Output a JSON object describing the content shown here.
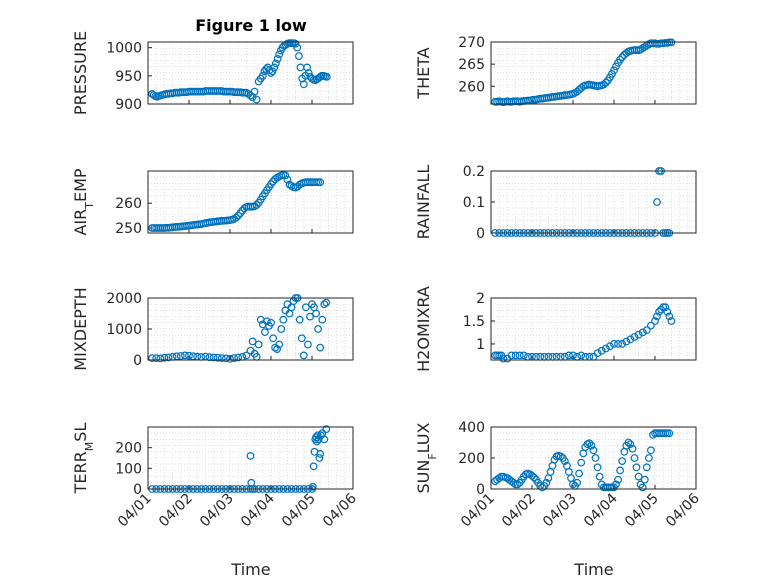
{
  "figure": {
    "title": "Figure 1 low",
    "xlabel": "Time",
    "x_ticks": [
      "04/01",
      "04/02",
      "04/03",
      "04/04",
      "04/05",
      "04/06"
    ],
    "marker_color": "#0072BD"
  },
  "chart_data": [
    {
      "type": "scatter",
      "ylabel": "PRESSURE",
      "ylabel_sub": "",
      "ylabel_tail": "",
      "xlim": [
        0,
        5
      ],
      "ylim": [
        900,
        1010
      ],
      "yticks": [
        900,
        950,
        1000
      ],
      "grid": true,
      "x": [
        0.1,
        0.14,
        0.18,
        0.22,
        0.26,
        0.3,
        0.35,
        0.4,
        0.45,
        0.5,
        0.55,
        0.6,
        0.65,
        0.7,
        0.75,
        0.8,
        0.85,
        0.9,
        0.95,
        1.0,
        1.05,
        1.1,
        1.15,
        1.2,
        1.25,
        1.3,
        1.35,
        1.4,
        1.45,
        1.5,
        1.55,
        1.6,
        1.65,
        1.7,
        1.75,
        1.8,
        1.85,
        1.9,
        1.95,
        2.0,
        2.05,
        2.1,
        2.15,
        2.2,
        2.25,
        2.3,
        2.35,
        2.4,
        2.45,
        2.5,
        2.55,
        2.6,
        2.65,
        2.7,
        2.75,
        2.8,
        2.84,
        2.88,
        2.92,
        2.96,
        3.0,
        3.04,
        3.08,
        3.12,
        3.16,
        3.2,
        3.24,
        3.28,
        3.32,
        3.36,
        3.4,
        3.44,
        3.48,
        3.52,
        3.56,
        3.6,
        3.64,
        3.68,
        3.72,
        3.76,
        3.8,
        3.84,
        3.88,
        3.92,
        3.96,
        4.0,
        4.04,
        4.08,
        4.12,
        4.16,
        4.2,
        4.24,
        4.28,
        4.32,
        4.36
      ],
      "y": [
        918,
        916,
        914,
        913,
        914,
        915,
        916,
        917,
        918,
        918,
        919,
        919,
        920,
        920,
        920,
        921,
        921,
        921,
        921,
        922,
        922,
        922,
        922,
        922,
        922,
        922,
        922,
        923,
        923,
        923,
        923,
        923,
        923,
        923,
        923,
        923,
        922,
        922,
        922,
        922,
        922,
        921,
        921,
        921,
        921,
        920,
        920,
        920,
        918,
        915,
        912,
        922,
        908,
        940,
        945,
        950,
        958,
        962,
        965,
        960,
        955,
        958,
        965,
        972,
        980,
        988,
        995,
        1000,
        1003,
        1005,
        1007,
        1008,
        1008,
        1008,
        1008,
        1007,
        1000,
        985,
        965,
        945,
        935,
        950,
        965,
        955,
        948,
        945,
        943,
        942,
        944,
        946,
        948,
        950,
        950,
        949,
        948
      ]
    },
    {
      "type": "scatter",
      "ylabel": "THETA",
      "ylabel_sub": "",
      "ylabel_tail": "",
      "xlim": [
        0,
        5
      ],
      "ylim": [
        256,
        270
      ],
      "yticks": [
        260,
        265,
        270
      ],
      "grid": true,
      "x": [
        0.1,
        0.15,
        0.2,
        0.25,
        0.3,
        0.35,
        0.4,
        0.45,
        0.5,
        0.55,
        0.6,
        0.65,
        0.7,
        0.75,
        0.8,
        0.85,
        0.9,
        0.95,
        1.0,
        1.05,
        1.1,
        1.15,
        1.2,
        1.25,
        1.3,
        1.35,
        1.4,
        1.45,
        1.5,
        1.55,
        1.6,
        1.65,
        1.7,
        1.75,
        1.8,
        1.85,
        1.9,
        1.95,
        2.0,
        2.05,
        2.1,
        2.15,
        2.2,
        2.25,
        2.3,
        2.35,
        2.4,
        2.45,
        2.5,
        2.55,
        2.6,
        2.65,
        2.7,
        2.75,
        2.8,
        2.85,
        2.9,
        2.95,
        3.0,
        3.05,
        3.1,
        3.15,
        3.2,
        3.25,
        3.3,
        3.35,
        3.4,
        3.45,
        3.5,
        3.55,
        3.6,
        3.65,
        3.7,
        3.75,
        3.8,
        3.85,
        3.9,
        3.95,
        4.0,
        4.05,
        4.1,
        4.15,
        4.2,
        4.25,
        4.3,
        4.35,
        4.4
      ],
      "y": [
        256.5,
        256.5,
        256.6,
        256.5,
        256.4,
        256.5,
        256.6,
        256.5,
        256.5,
        256.6,
        256.6,
        256.6,
        256.5,
        256.6,
        256.7,
        256.7,
        256.8,
        256.8,
        256.9,
        257.0,
        257.0,
        257.1,
        257.2,
        257.2,
        257.3,
        257.4,
        257.4,
        257.5,
        257.6,
        257.6,
        257.7,
        257.8,
        257.8,
        257.9,
        258.0,
        258.0,
        258.1,
        258.2,
        258.3,
        258.5,
        258.8,
        259.2,
        259.6,
        260.0,
        260.2,
        260.3,
        260.4,
        260.3,
        260.2,
        260.1,
        260.0,
        260.1,
        260.2,
        260.4,
        260.8,
        261.3,
        262.0,
        262.8,
        263.6,
        264.5,
        265.3,
        266.0,
        266.6,
        267.1,
        267.5,
        267.8,
        268.0,
        268.1,
        268.2,
        268.2,
        268.1,
        268.3,
        268.6,
        268.9,
        269.2,
        269.5,
        269.7,
        269.7,
        269.7,
        269.6,
        269.6,
        269.7,
        269.7,
        269.8,
        269.8,
        269.9,
        269.9
      ]
    },
    {
      "type": "scatter",
      "ylabel": "AIR",
      "ylabel_sub": "T",
      "ylabel_tail": "EMP",
      "xlim": [
        0,
        5
      ],
      "ylim": [
        248,
        273
      ],
      "yticks": [
        250,
        260
      ],
      "grid": true,
      "x": [
        0.1,
        0.15,
        0.2,
        0.25,
        0.3,
        0.35,
        0.4,
        0.45,
        0.5,
        0.55,
        0.6,
        0.65,
        0.7,
        0.75,
        0.8,
        0.85,
        0.9,
        0.95,
        1.0,
        1.05,
        1.1,
        1.15,
        1.2,
        1.25,
        1.3,
        1.35,
        1.4,
        1.45,
        1.5,
        1.55,
        1.6,
        1.65,
        1.7,
        1.75,
        1.8,
        1.85,
        1.9,
        1.95,
        2.0,
        2.05,
        2.1,
        2.15,
        2.2,
        2.25,
        2.3,
        2.35,
        2.4,
        2.45,
        2.5,
        2.55,
        2.6,
        2.65,
        2.7,
        2.75,
        2.8,
        2.85,
        2.9,
        2.95,
        3.0,
        3.05,
        3.1,
        3.15,
        3.2,
        3.25,
        3.3,
        3.35,
        3.4,
        3.45,
        3.5,
        3.55,
        3.6,
        3.65,
        3.7,
        3.75,
        3.8,
        3.85,
        3.9,
        3.95,
        4.0,
        4.05,
        4.1,
        4.15,
        4.2
      ],
      "y": [
        250.0,
        250.0,
        250.0,
        250.0,
        250.0,
        250.0,
        250.0,
        250.1,
        250.1,
        250.2,
        250.3,
        250.4,
        250.5,
        250.5,
        250.6,
        250.7,
        250.8,
        250.9,
        251.0,
        251.1,
        251.2,
        251.3,
        251.4,
        251.5,
        251.6,
        251.8,
        252.0,
        252.1,
        252.3,
        252.4,
        252.5,
        252.6,
        252.7,
        252.8,
        252.9,
        252.9,
        253.0,
        253.1,
        253.2,
        253.4,
        253.7,
        254.2,
        255.0,
        256.0,
        257.0,
        258.0,
        258.5,
        258.7,
        258.6,
        258.6,
        258.8,
        259.3,
        260.2,
        261.5,
        262.8,
        264.0,
        265.3,
        266.5,
        267.7,
        268.8,
        269.7,
        270.3,
        270.8,
        271.2,
        271.5,
        271.2,
        269.5,
        267.5,
        267.0,
        266.5,
        266.3,
        266.7,
        267.5,
        268.0,
        268.3,
        268.5,
        268.5,
        268.5,
        268.5,
        268.5,
        268.5,
        268.5,
        268.5
      ]
    },
    {
      "type": "scatter",
      "ylabel": "RAINFALL",
      "ylabel_sub": "",
      "ylabel_tail": "",
      "xlim": [
        0,
        5
      ],
      "ylim": [
        0,
        0.2
      ],
      "yticks": [
        0,
        0.1,
        0.2
      ],
      "grid": true,
      "x": [
        0.1,
        0.2,
        0.3,
        0.4,
        0.5,
        0.6,
        0.7,
        0.8,
        0.9,
        1.0,
        1.1,
        1.2,
        1.3,
        1.4,
        1.5,
        1.6,
        1.7,
        1.8,
        1.9,
        2.0,
        2.1,
        2.2,
        2.3,
        2.4,
        2.5,
        2.6,
        2.7,
        2.8,
        2.9,
        3.0,
        3.1,
        3.2,
        3.3,
        3.4,
        3.5,
        3.6,
        3.7,
        3.8,
        3.9,
        4.0,
        4.05,
        4.1,
        4.15,
        4.2,
        4.25,
        4.3,
        4.35
      ],
      "y": [
        0,
        0,
        0,
        0,
        0,
        0,
        0,
        0,
        0,
        0,
        0,
        0,
        0,
        0,
        0,
        0,
        0,
        0,
        0,
        0,
        0,
        0,
        0,
        0,
        0,
        0,
        0,
        0,
        0,
        0,
        0,
        0,
        0,
        0,
        0,
        0,
        0,
        0,
        0,
        0,
        0.1,
        0.2,
        0.2,
        0,
        0,
        0,
        0
      ]
    },
    {
      "type": "scatter",
      "ylabel": "MIXDEPTH",
      "ylabel_sub": "",
      "ylabel_tail": "",
      "xlim": [
        0,
        5
      ],
      "ylim": [
        0,
        2000
      ],
      "yticks": [
        0,
        1000,
        2000
      ],
      "grid": true,
      "x": [
        0.1,
        0.2,
        0.3,
        0.4,
        0.5,
        0.6,
        0.7,
        0.8,
        0.9,
        1.0,
        1.1,
        1.2,
        1.3,
        1.4,
        1.5,
        1.6,
        1.7,
        1.8,
        1.9,
        2.0,
        2.1,
        2.2,
        2.3,
        2.4,
        2.5,
        2.55,
        2.6,
        2.65,
        2.7,
        2.75,
        2.8,
        2.85,
        2.9,
        2.95,
        3.0,
        3.05,
        3.1,
        3.15,
        3.2,
        3.25,
        3.3,
        3.35,
        3.4,
        3.45,
        3.5,
        3.55,
        3.6,
        3.65,
        3.7,
        3.75,
        3.8,
        3.85,
        3.9,
        3.95,
        4.0,
        4.05,
        4.1,
        4.15,
        4.2,
        4.25,
        4.3,
        4.35
      ],
      "y": [
        60,
        60,
        50,
        70,
        80,
        100,
        120,
        130,
        150,
        140,
        120,
        110,
        100,
        110,
        90,
        80,
        70,
        60,
        50,
        40,
        60,
        80,
        100,
        150,
        300,
        600,
        200,
        100,
        500,
        1300,
        1150,
        900,
        1250,
        1100,
        1200,
        700,
        400,
        350,
        500,
        1000,
        1300,
        1600,
        1800,
        1500,
        1700,
        1900,
        2000,
        2000,
        1300,
        700,
        150,
        1700,
        500,
        1400,
        1800,
        1700,
        1500,
        1000,
        400,
        1300,
        1800,
        1850
      ]
    },
    {
      "type": "scatter",
      "ylabel": "H2OMIXRA",
      "ylabel_sub": "",
      "ylabel_tail": "",
      "xlim": [
        0,
        5
      ],
      "ylim": [
        0.65,
        2
      ],
      "yticks": [
        1,
        1.5,
        2
      ],
      "grid": true,
      "x": [
        0.1,
        0.15,
        0.2,
        0.25,
        0.3,
        0.4,
        0.5,
        0.6,
        0.7,
        0.8,
        0.9,
        1.0,
        1.1,
        1.2,
        1.3,
        1.4,
        1.5,
        1.6,
        1.7,
        1.8,
        1.9,
        2.0,
        2.1,
        2.2,
        2.3,
        2.4,
        2.5,
        2.6,
        2.7,
        2.8,
        2.9,
        3.0,
        3.1,
        3.2,
        3.3,
        3.4,
        3.5,
        3.6,
        3.7,
        3.8,
        3.9,
        4.0,
        4.05,
        4.1,
        4.15,
        4.2,
        4.25,
        4.3,
        4.35,
        4.4
      ],
      "y": [
        0.75,
        0.75,
        0.75,
        0.75,
        0.68,
        0.68,
        0.75,
        0.75,
        0.75,
        0.75,
        0.72,
        0.72,
        0.72,
        0.72,
        0.72,
        0.72,
        0.72,
        0.72,
        0.72,
        0.72,
        0.75,
        0.75,
        0.72,
        0.75,
        0.72,
        0.72,
        0.72,
        0.8,
        0.85,
        0.9,
        0.95,
        1.0,
        1.0,
        1.0,
        1.05,
        1.1,
        1.15,
        1.2,
        1.25,
        1.3,
        1.4,
        1.5,
        1.6,
        1.7,
        1.75,
        1.8,
        1.8,
        1.7,
        1.6,
        1.5
      ]
    },
    {
      "type": "scatter",
      "ylabel": "TERR",
      "ylabel_sub": "M",
      "ylabel_tail": "SL",
      "xlim": [
        0,
        5
      ],
      "ylim": [
        0,
        300
      ],
      "yticks": [
        0,
        100,
        200
      ],
      "grid": true,
      "x": [
        0.1,
        0.2,
        0.3,
        0.4,
        0.5,
        0.6,
        0.7,
        0.8,
        0.9,
        1.0,
        1.1,
        1.2,
        1.3,
        1.4,
        1.5,
        1.6,
        1.7,
        1.8,
        1.9,
        2.0,
        2.1,
        2.2,
        2.3,
        2.4,
        2.5,
        2.6,
        2.7,
        2.8,
        2.9,
        3.0,
        3.1,
        3.2,
        3.3,
        3.4,
        3.5,
        3.6,
        3.7,
        3.8,
        3.9,
        4.0,
        4.02,
        4.04,
        4.06,
        4.08,
        4.1,
        4.12,
        4.14,
        4.16,
        4.18,
        4.2,
        4.22,
        4.25,
        4.3,
        4.35,
        2.5,
        2.52,
        2.55
      ],
      "y": [
        0,
        0,
        0,
        0,
        0,
        0,
        0,
        0,
        0,
        0,
        0,
        0,
        0,
        0,
        0,
        0,
        0,
        0,
        0,
        0,
        0,
        0,
        0,
        0,
        0,
        0,
        0,
        0,
        0,
        0,
        0,
        0,
        0,
        0,
        0,
        0,
        0,
        0,
        0,
        0,
        10,
        110,
        180,
        240,
        250,
        230,
        260,
        240,
        150,
        170,
        260,
        270,
        240,
        290,
        160,
        30,
        0
      ]
    },
    {
      "type": "scatter",
      "ylabel": "SUN",
      "ylabel_sub": "F",
      "ylabel_tail": "LUX",
      "xlim": [
        0,
        5
      ],
      "ylim": [
        0,
        400
      ],
      "yticks": [
        0,
        200,
        400
      ],
      "grid": true,
      "x": [
        0.1,
        0.15,
        0.2,
        0.25,
        0.3,
        0.35,
        0.4,
        0.45,
        0.5,
        0.55,
        0.6,
        0.65,
        0.7,
        0.75,
        0.8,
        0.85,
        0.9,
        0.95,
        1.0,
        1.05,
        1.1,
        1.15,
        1.2,
        1.25,
        1.3,
        1.35,
        1.4,
        1.45,
        1.5,
        1.55,
        1.6,
        1.65,
        1.7,
        1.75,
        1.8,
        1.85,
        1.9,
        1.95,
        2.0,
        2.05,
        2.1,
        2.15,
        2.2,
        2.25,
        2.3,
        2.35,
        2.4,
        2.45,
        2.5,
        2.55,
        2.6,
        2.65,
        2.7,
        2.75,
        2.8,
        2.85,
        2.9,
        2.95,
        3.0,
        3.05,
        3.1,
        3.15,
        3.2,
        3.25,
        3.3,
        3.35,
        3.4,
        3.45,
        3.5,
        3.55,
        3.6,
        3.65,
        3.7,
        3.75,
        3.8,
        3.85,
        3.9,
        3.95,
        4.0,
        4.05,
        4.1,
        4.15,
        4.2,
        4.25,
        4.3,
        4.35
      ],
      "y": [
        50,
        60,
        70,
        80,
        80,
        75,
        70,
        60,
        50,
        40,
        30,
        30,
        40,
        60,
        80,
        95,
        100,
        95,
        85,
        75,
        60,
        40,
        20,
        10,
        20,
        40,
        70,
        110,
        150,
        190,
        210,
        215,
        210,
        200,
        180,
        150,
        110,
        70,
        30,
        20,
        40,
        100,
        170,
        230,
        270,
        290,
        295,
        280,
        250,
        200,
        140,
        80,
        30,
        10,
        10,
        10,
        10,
        10,
        10,
        30,
        60,
        120,
        180,
        240,
        280,
        300,
        290,
        260,
        200,
        140,
        80,
        30,
        10,
        60,
        140,
        200,
        250,
        350,
        360,
        360,
        360,
        360,
        360,
        360,
        360,
        360
      ]
    }
  ]
}
